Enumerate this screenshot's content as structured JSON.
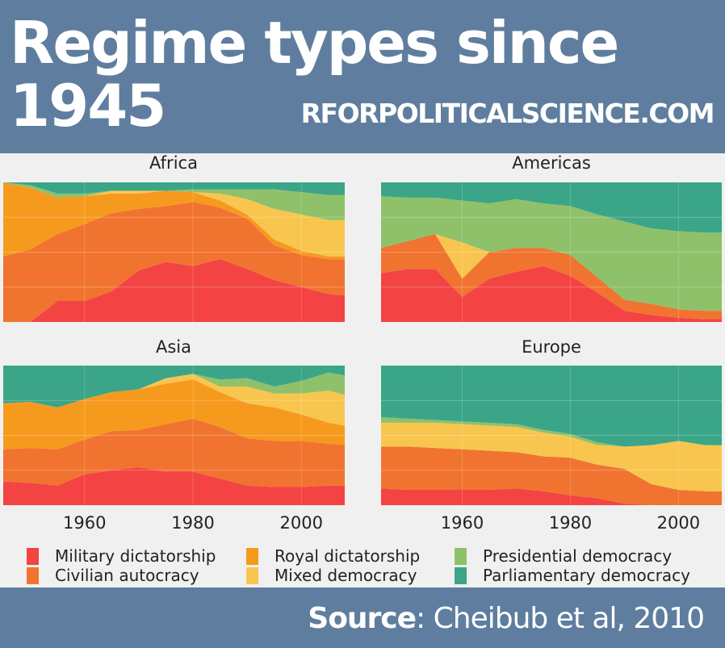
{
  "header": {
    "title": "Regime types since 1945",
    "site": "RFORPOLITICALSCIENCE.COM"
  },
  "footer": {
    "source_label": "Source",
    "source_text": ": Cheibub et al, 2010"
  },
  "colors": {
    "military": "#f44343",
    "civilian": "#f07430",
    "royal": "#f69a1e",
    "mixed": "#f8c64f",
    "presidential": "#8fc16a",
    "parliamentary": "#3ba588",
    "panel_bg": "#f0f0f0",
    "header_bg": "#5f7e9f"
  },
  "legend": [
    {
      "key": "military",
      "label": "Military dictatorship"
    },
    {
      "key": "civilian",
      "label": "Civilian autocracy"
    },
    {
      "key": "royal",
      "label": "Royal dictatorship"
    },
    {
      "key": "mixed",
      "label": "Mixed democracy"
    },
    {
      "key": "presidential",
      "label": "Presidential democracy"
    },
    {
      "key": "parliamentary",
      "label": "Parliamentary democracy"
    }
  ],
  "chart_data": {
    "type": "area",
    "stacked": "proportion",
    "x_ticks": [
      1960,
      1980,
      2000
    ],
    "x_range": [
      1945,
      2008
    ],
    "y_range": [
      0,
      1
    ],
    "grid": true,
    "legend_position": "bottom",
    "stack_order": [
      "military",
      "civilian",
      "royal",
      "mixed",
      "presidential",
      "parliamentary"
    ],
    "panels": [
      {
        "title": "Africa",
        "x": [
          1945,
          1950,
          1955,
          1960,
          1965,
          1970,
          1975,
          1980,
          1985,
          1990,
          1995,
          2000,
          2005,
          2008
        ],
        "series": {
          "military": [
            0.0,
            0.0,
            0.15,
            0.15,
            0.22,
            0.37,
            0.43,
            0.4,
            0.45,
            0.38,
            0.3,
            0.25,
            0.2,
            0.19
          ],
          "civilian": [
            0.47,
            0.52,
            0.48,
            0.55,
            0.56,
            0.44,
            0.4,
            0.46,
            0.37,
            0.36,
            0.25,
            0.23,
            0.25,
            0.26
          ],
          "royal": [
            0.53,
            0.44,
            0.26,
            0.2,
            0.14,
            0.11,
            0.11,
            0.07,
            0.05,
            0.03,
            0.04,
            0.03,
            0.02,
            0.02
          ],
          "mixed": [
            0.0,
            0.0,
            0.0,
            0.0,
            0.02,
            0.02,
            0.0,
            0.0,
            0.05,
            0.11,
            0.22,
            0.26,
            0.26,
            0.26
          ],
          "presidential": [
            0.0,
            0.02,
            0.03,
            0.02,
            0.0,
            0.0,
            0.0,
            0.02,
            0.03,
            0.07,
            0.14,
            0.16,
            0.18,
            0.18
          ],
          "parliamentary": [
            0.0,
            0.02,
            0.08,
            0.08,
            0.06,
            0.06,
            0.06,
            0.05,
            0.05,
            0.05,
            0.05,
            0.07,
            0.09,
            0.09
          ]
        }
      },
      {
        "title": "Americas",
        "x": [
          1945,
          1950,
          1955,
          1960,
          1965,
          1970,
          1975,
          1980,
          1985,
          1990,
          1995,
          2000,
          2005,
          2008
        ],
        "series": {
          "military": [
            0.35,
            0.38,
            0.38,
            0.18,
            0.31,
            0.36,
            0.4,
            0.33,
            0.21,
            0.08,
            0.05,
            0.03,
            0.02,
            0.02
          ],
          "civilian": [
            0.18,
            0.2,
            0.25,
            0.13,
            0.19,
            0.17,
            0.13,
            0.15,
            0.11,
            0.08,
            0.08,
            0.06,
            0.06,
            0.06
          ],
          "royal": [
            0.0,
            0.0,
            0.0,
            0.0,
            0.0,
            0.0,
            0.0,
            0.0,
            0.0,
            0.0,
            0.0,
            0.0,
            0.0,
            0.0
          ],
          "mixed": [
            0.0,
            0.0,
            0.0,
            0.26,
            0.0,
            0.0,
            0.0,
            0.0,
            0.0,
            0.0,
            0.0,
            0.0,
            0.0,
            0.0
          ],
          "presidential": [
            0.37,
            0.31,
            0.26,
            0.3,
            0.35,
            0.35,
            0.32,
            0.35,
            0.45,
            0.56,
            0.54,
            0.56,
            0.56,
            0.56
          ],
          "parliamentary": [
            0.1,
            0.11,
            0.11,
            0.13,
            0.15,
            0.12,
            0.15,
            0.17,
            0.23,
            0.28,
            0.33,
            0.35,
            0.36,
            0.36
          ]
        }
      },
      {
        "title": "Asia",
        "x": [
          1945,
          1950,
          1955,
          1960,
          1965,
          1970,
          1975,
          1980,
          1985,
          1990,
          1995,
          2000,
          2005,
          2008
        ],
        "series": {
          "military": [
            0.17,
            0.16,
            0.14,
            0.22,
            0.25,
            0.27,
            0.24,
            0.24,
            0.19,
            0.14,
            0.13,
            0.13,
            0.14,
            0.14
          ],
          "civilian": [
            0.23,
            0.25,
            0.26,
            0.25,
            0.28,
            0.27,
            0.34,
            0.38,
            0.37,
            0.34,
            0.33,
            0.33,
            0.3,
            0.29
          ],
          "royal": [
            0.33,
            0.33,
            0.3,
            0.29,
            0.28,
            0.29,
            0.29,
            0.28,
            0.25,
            0.25,
            0.24,
            0.19,
            0.15,
            0.14
          ],
          "mixed": [
            0.0,
            0.0,
            0.0,
            0.0,
            0.0,
            0.0,
            0.04,
            0.04,
            0.04,
            0.12,
            0.1,
            0.15,
            0.23,
            0.22
          ],
          "presidential": [
            0.0,
            0.0,
            0.0,
            0.0,
            0.0,
            0.0,
            0.0,
            0.0,
            0.05,
            0.06,
            0.05,
            0.09,
            0.13,
            0.14
          ],
          "parliamentary": [
            0.27,
            0.26,
            0.3,
            0.24,
            0.19,
            0.17,
            0.09,
            0.06,
            0.1,
            0.09,
            0.15,
            0.11,
            0.05,
            0.07
          ]
        }
      },
      {
        "title": "Europe",
        "x": [
          1945,
          1950,
          1955,
          1960,
          1965,
          1970,
          1975,
          1980,
          1985,
          1990,
          1995,
          2000,
          2005,
          2008
        ],
        "series": {
          "military": [
            0.12,
            0.11,
            0.11,
            0.11,
            0.11,
            0.12,
            0.1,
            0.07,
            0.05,
            0.01,
            0.0,
            0.0,
            0.0,
            0.0
          ],
          "civilian": [
            0.3,
            0.31,
            0.3,
            0.29,
            0.28,
            0.26,
            0.25,
            0.27,
            0.24,
            0.25,
            0.15,
            0.11,
            0.1,
            0.1
          ],
          "royal": [
            0.0,
            0.0,
            0.0,
            0.0,
            0.0,
            0.0,
            0.0,
            0.0,
            0.0,
            0.0,
            0.0,
            0.0,
            0.0,
            0.0
          ],
          "mixed": [
            0.17,
            0.17,
            0.18,
            0.18,
            0.18,
            0.18,
            0.17,
            0.15,
            0.14,
            0.16,
            0.28,
            0.35,
            0.33,
            0.33
          ],
          "presidential": [
            0.04,
            0.03,
            0.02,
            0.02,
            0.02,
            0.02,
            0.02,
            0.02,
            0.02,
            0.0,
            0.0,
            0.0,
            0.0,
            0.0
          ],
          "parliamentary": [
            0.37,
            0.38,
            0.39,
            0.4,
            0.41,
            0.42,
            0.46,
            0.49,
            0.55,
            0.58,
            0.57,
            0.54,
            0.57,
            0.57
          ]
        }
      }
    ]
  }
}
